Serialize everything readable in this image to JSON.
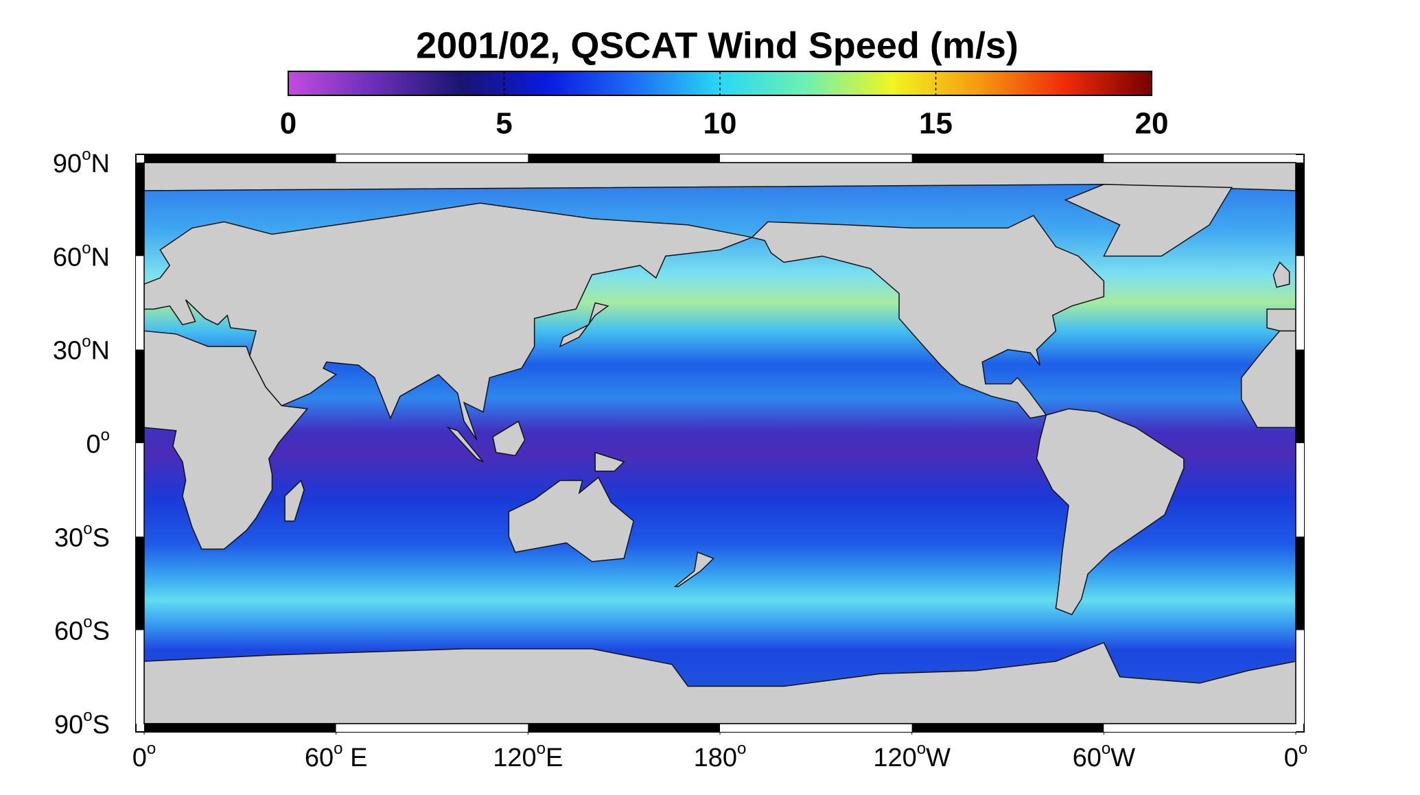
{
  "map": {
    "title": "2001/02,  QSCAT Wind Speed (m/s)",
    "colorbar": {
      "lim": [
        0,
        20
      ],
      "ticks": [
        0,
        5,
        10,
        15,
        20
      ],
      "colormap": [
        "#c24be0",
        "#6a2fb8",
        "#1a1470",
        "#0a1ae0",
        "#1e6cf5",
        "#28d8f5",
        "#6ef0b0",
        "#f0f520",
        "#f59a10",
        "#f02a0a",
        "#780000"
      ]
    },
    "lat_ticks": [
      {
        "value": 90,
        "label": [
          "90",
          "o",
          "N"
        ]
      },
      {
        "value": 60,
        "label": [
          "60",
          "o",
          "N"
        ]
      },
      {
        "value": 30,
        "label": [
          "30",
          "o",
          "N"
        ]
      },
      {
        "value": 0,
        "label": [
          "0",
          "o"
        ]
      },
      {
        "value": -30,
        "label": [
          "30",
          "o",
          "S"
        ]
      },
      {
        "value": -60,
        "label": [
          "60",
          "o",
          "S"
        ]
      },
      {
        "value": -90,
        "label": [
          "90",
          "o",
          "S"
        ]
      }
    ],
    "lon_ticks": [
      {
        "value": 0,
        "label": [
          "0",
          "o"
        ]
      },
      {
        "value": 60,
        "label": [
          "60",
          "o",
          " E"
        ]
      },
      {
        "value": 120,
        "label": [
          "120",
          "o",
          "E"
        ]
      },
      {
        "value": 180,
        "label": [
          "180",
          "o"
        ]
      },
      {
        "value": 240,
        "label": [
          "120",
          "o",
          "W"
        ]
      },
      {
        "value": 300,
        "label": [
          "60",
          "o",
          "W"
        ]
      },
      {
        "value": 360,
        "label": [
          "0",
          "o"
        ]
      }
    ]
  }
}
